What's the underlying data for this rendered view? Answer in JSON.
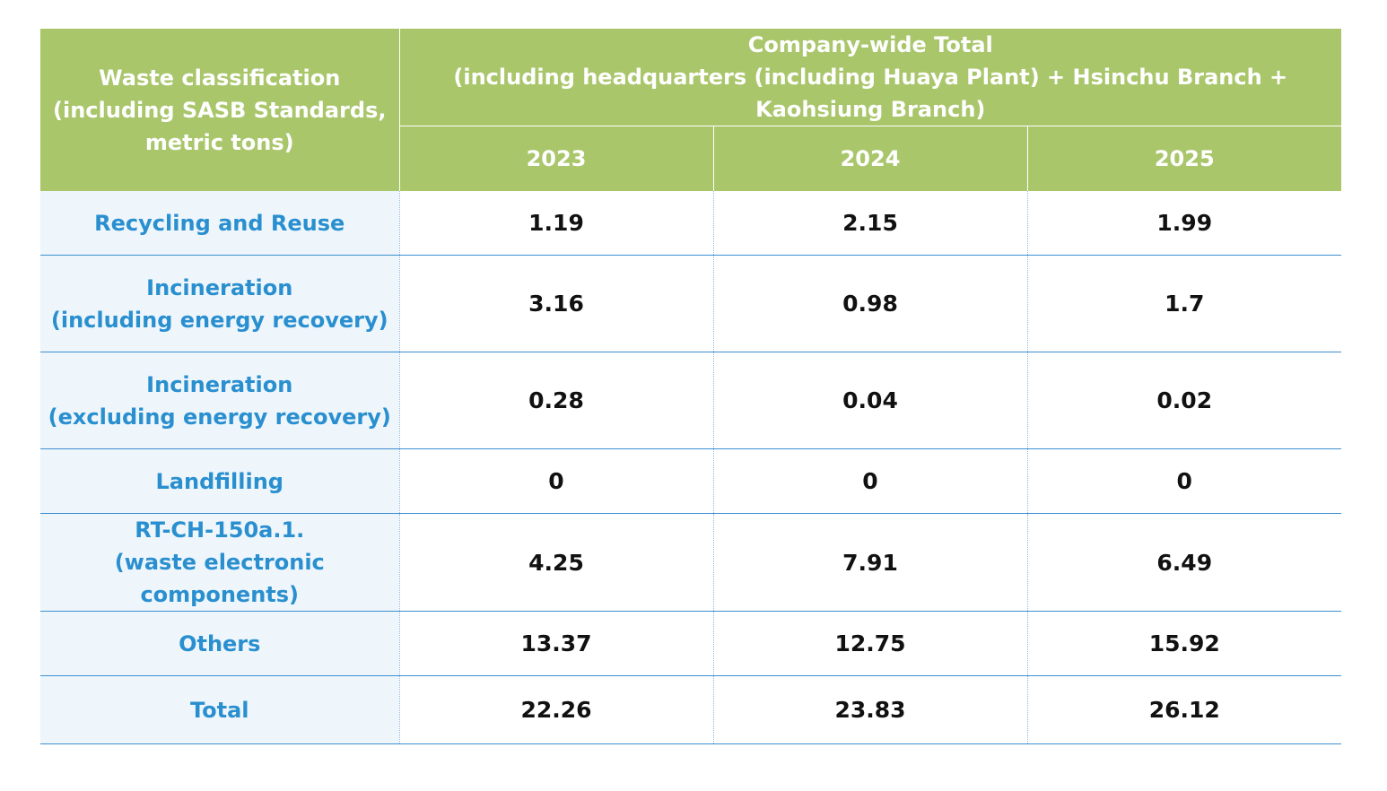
{
  "header": {
    "classification_lines": [
      "Waste classification",
      "(including SASB Standards,",
      "metric tons)"
    ],
    "total_lines": [
      "Company-wide Total",
      "(including headquarters (including Huaya Plant) + Hsinchu Branch + Kaohsiung Branch)"
    ],
    "years": [
      "2023",
      "2024",
      "2025"
    ]
  },
  "rows": [
    {
      "label_lines": [
        "Recycling and Reuse"
      ],
      "values": [
        "1.19",
        "2.15",
        "1.99"
      ]
    },
    {
      "label_lines": [
        "Incineration",
        "(including energy recovery)"
      ],
      "values": [
        "3.16",
        "0.98",
        "1.7"
      ]
    },
    {
      "label_lines": [
        "Incineration",
        "(excluding energy recovery)"
      ],
      "values": [
        "0.28",
        "0.04",
        "0.02"
      ]
    },
    {
      "label_lines": [
        "Landfilling"
      ],
      "values": [
        "0",
        "0",
        "0"
      ]
    },
    {
      "label_lines": [
        "RT-CH-150a.1.",
        "(waste electronic components)"
      ],
      "values": [
        "4.25",
        "7.91",
        "6.49"
      ]
    },
    {
      "label_lines": [
        "Others"
      ],
      "values": [
        "13.37",
        "12.75",
        "15.92"
      ]
    },
    {
      "label_lines": [
        "Total"
      ],
      "values": [
        "22.26",
        "23.83",
        "26.12"
      ]
    }
  ]
}
